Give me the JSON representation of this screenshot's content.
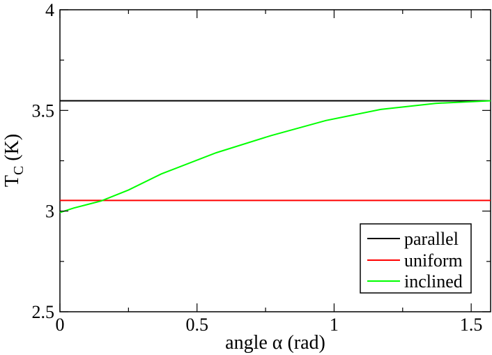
{
  "chart_data": {
    "type": "line",
    "title": "",
    "xlabel": "angle α (rad)",
    "ylabel_main": "T",
    "ylabel_sub": "C",
    "ylabel_unit": " (K)",
    "xlim": [
      0,
      1.5708
    ],
    "ylim": [
      2.5,
      4.0
    ],
    "xticks": [
      {
        "value": 0,
        "label": "0"
      },
      {
        "value": 0.5,
        "label": "0.5"
      },
      {
        "value": 1.0,
        "label": "1"
      },
      {
        "value": 1.5,
        "label": "1.5"
      }
    ],
    "yticks": [
      {
        "value": 2.5,
        "label": "2.5"
      },
      {
        "value": 3.0,
        "label": "3"
      },
      {
        "value": 3.5,
        "label": "3.5"
      },
      {
        "value": 4.0,
        "label": "4"
      }
    ],
    "grid": false,
    "legend_position": "bottom-right",
    "series": [
      {
        "name": "parallel",
        "color": "#000000",
        "x": [
          0,
          1.5708
        ],
        "y": [
          3.548,
          3.548
        ]
      },
      {
        "name": "uniform",
        "color": "#ff0000",
        "x": [
          0,
          1.5708
        ],
        "y": [
          3.053,
          3.053
        ]
      },
      {
        "name": "inclined",
        "color": "#00ff00",
        "x": [
          0,
          0.05,
          0.15,
          0.25,
          0.37,
          0.57,
          0.77,
          0.97,
          1.17,
          1.37,
          1.5708
        ],
        "y": [
          2.993,
          3.015,
          3.05,
          3.105,
          3.185,
          3.29,
          3.375,
          3.45,
          3.505,
          3.535,
          3.548
        ]
      }
    ]
  }
}
